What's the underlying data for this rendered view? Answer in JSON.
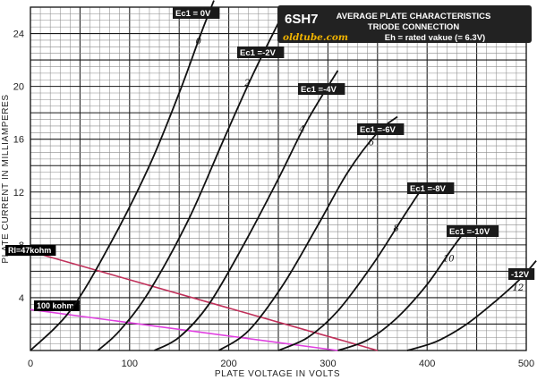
{
  "chart_data": {
    "type": "line",
    "title": "AVERAGE PLATE CHARACTERISTICS",
    "subtitle": "TRIODE CONNECTION",
    "tube": "6SH7",
    "heater_note": "Eh = rated vakue (= 6.3V)",
    "website": "oldtube.com",
    "xlabel": "PLATE VOLTAGE IN VOLTS",
    "ylabel": "PLATE CURRENT IN MILLIAMPERES",
    "xlim": [
      0,
      500
    ],
    "ylim": [
      0,
      26
    ],
    "x_ticks": [
      0,
      100,
      200,
      300,
      400,
      500
    ],
    "y_ticks": [
      4,
      8,
      12,
      16,
      20,
      24
    ],
    "grid": true,
    "series": [
      {
        "name": "Ec1 = 0V",
        "hand_label": "0",
        "color": "#111111",
        "points": [
          [
            0,
            0
          ],
          [
            40,
            3
          ],
          [
            80,
            8
          ],
          [
            120,
            14
          ],
          [
            150,
            19.5
          ],
          [
            172,
            24
          ],
          [
            185,
            26.5
          ]
        ]
      },
      {
        "name": "Ec1 =-2V",
        "hand_label": "2",
        "color": "#111111",
        "points": [
          [
            68,
            0
          ],
          [
            90,
            1.5
          ],
          [
            120,
            4.5
          ],
          [
            160,
            10
          ],
          [
            195,
            16
          ],
          [
            225,
            21
          ],
          [
            250,
            24.8
          ]
        ]
      },
      {
        "name": "Ec1 =-4V",
        "hand_label": "4",
        "color": "#111111",
        "points": [
          [
            125,
            0
          ],
          [
            150,
            1
          ],
          [
            180,
            3.5
          ],
          [
            215,
            8
          ],
          [
            250,
            13
          ],
          [
            280,
            17.5
          ],
          [
            310,
            21.2
          ]
        ]
      },
      {
        "name": "Ec1 =-6V",
        "hand_label": "6",
        "color": "#111111",
        "points": [
          [
            190,
            0
          ],
          [
            220,
            1.5
          ],
          [
            255,
            5
          ],
          [
            290,
            9.5
          ],
          [
            320,
            13.5
          ],
          [
            350,
            16.5
          ],
          [
            370,
            17.7
          ]
        ]
      },
      {
        "name": "Ec1 =-8V",
        "hand_label": "8",
        "color": "#111111",
        "points": [
          [
            250,
            0
          ],
          [
            280,
            1
          ],
          [
            310,
            3
          ],
          [
            345,
            6.5
          ],
          [
            375,
            10
          ],
          [
            395,
            12.3
          ]
        ]
      },
      {
        "name": "Ec1 =-10V",
        "hand_label": "10",
        "color": "#111111",
        "points": [
          [
            310,
            0
          ],
          [
            340,
            0.8
          ],
          [
            370,
            2.5
          ],
          [
            400,
            5
          ],
          [
            425,
            7.7
          ],
          [
            440,
            9.2
          ]
        ]
      },
      {
        "name": "-12V",
        "hand_label": "12",
        "color": "#111111",
        "points": [
          [
            380,
            0
          ],
          [
            410,
            0.7
          ],
          [
            440,
            2
          ],
          [
            470,
            3.8
          ],
          [
            495,
            5.5
          ],
          [
            510,
            6.8
          ]
        ]
      }
    ],
    "load_lines": [
      {
        "name": "Rl=47kohm",
        "color": "#c0305a",
        "points": [
          [
            0,
            7.5
          ],
          [
            350,
            0
          ]
        ]
      },
      {
        "name": "100 kohm",
        "color": "#e040e0",
        "points": [
          [
            0,
            3.1
          ],
          [
            310,
            0
          ]
        ]
      }
    ]
  }
}
